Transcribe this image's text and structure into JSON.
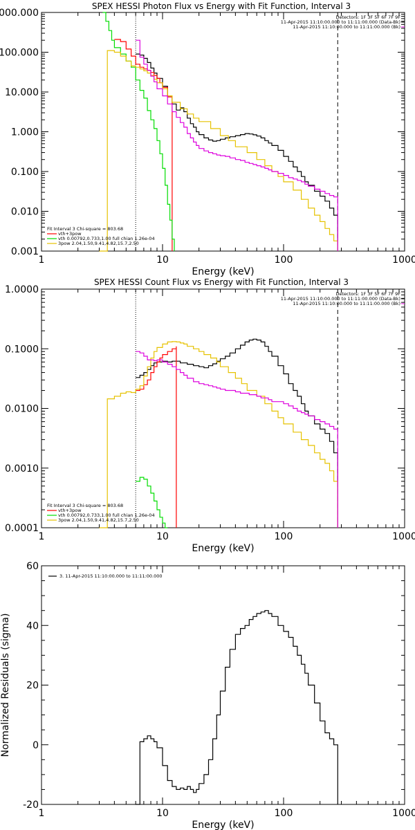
{
  "colors": {
    "black": "#000000",
    "red": "#ff0000",
    "green": "#00dd00",
    "yellow": "#e6c200",
    "magenta": "#dd00dd"
  },
  "chart_data": [
    {
      "type": "line",
      "title": "SPEX HESSI Photon Flux vs Energy with Fit Function, Interval 3",
      "xlabel": "Energy (keV)",
      "ylabel": "",
      "xscale": "log",
      "yscale": "log",
      "xlim": [
        1,
        1000
      ],
      "ylim": [
        0.001,
        1000
      ],
      "xticks": [
        1,
        10,
        100,
        1000
      ],
      "xticklabels": [
        "1",
        "10",
        "100",
        "1000"
      ],
      "yticks": [
        0.001,
        0.01,
        0.1,
        1,
        10,
        100,
        1000
      ],
      "yticklabels": [
        "0.001",
        "0.010",
        "0.100",
        "1.000",
        "10.000",
        "100.000",
        "1000.000"
      ],
      "vlines": [
        {
          "x": 6,
          "style": "dotted"
        },
        {
          "x": 280,
          "style": "dashed"
        }
      ],
      "header": [
        "Detectors: 1F 3F 5F 6F 7F 9F",
        "11-Apr-2015 11:10:00.000 to 11:11:00.000 (Data-Bk)",
        "11-Apr-2015 11:10:00.000 to 11:11:00.000 (Bk)"
      ],
      "legend_title": "Fit Interval 3   Chi-square = 803.68",
      "legend": [
        "vth+3pow",
        "vth 0.00792,0.733,1.00   full chian 1.26e-04",
        "3pow 2.04,1.50,9.41,4.82,15.7,2.50"
      ],
      "series": [
        {
          "color": "black",
          "x": [
            6,
            6.5,
            7,
            7.5,
            8,
            8.5,
            9,
            10,
            11,
            12,
            13,
            14,
            15,
            16,
            17,
            18,
            19,
            20,
            22,
            24,
            26,
            28,
            30,
            33,
            36,
            40,
            44,
            48,
            52,
            56,
            60,
            65,
            70,
            75,
            80,
            90,
            100,
            110,
            120,
            130,
            140,
            150,
            160,
            180,
            200,
            220,
            240,
            260,
            280
          ],
          "y": [
            90,
            85,
            70,
            55,
            40,
            30,
            22,
            14,
            8,
            5,
            3.5,
            4,
            3.2,
            2.2,
            1.6,
            1.3,
            1,
            0.85,
            0.7,
            0.62,
            0.58,
            0.6,
            0.65,
            0.7,
            0.75,
            0.8,
            0.85,
            0.9,
            0.88,
            0.84,
            0.78,
            0.7,
            0.6,
            0.52,
            0.45,
            0.34,
            0.24,
            0.18,
            0.13,
            0.1,
            0.075,
            0.055,
            0.045,
            0.032,
            0.024,
            0.018,
            0.012,
            0.008,
            0.0045
          ]
        },
        {
          "color": "red",
          "x": [
            4,
            4.5,
            5,
            5.5,
            6,
            6.5,
            7,
            7.5,
            8,
            8.5,
            9,
            9.5,
            10,
            11,
            12
          ],
          "y": [
            210,
            185,
            120,
            80,
            50,
            42,
            38,
            35,
            31,
            26,
            22,
            17,
            13,
            7.5,
            5
          ]
        },
        {
          "color": "green",
          "x": [
            3.2,
            3.4,
            3.6,
            3.8,
            4,
            4.5,
            5,
            5.5,
            6,
            6.5,
            7,
            7.5,
            8,
            8.5,
            9,
            9.5,
            10,
            10.5,
            11,
            11.5,
            12,
            12.5
          ],
          "y": [
            1000,
            600,
            350,
            200,
            130,
            90,
            60,
            42,
            20,
            11,
            7,
            3.4,
            2,
            1.2,
            0.6,
            0.28,
            0.12,
            0.045,
            0.015,
            0.006,
            0.002,
            0.001
          ]
        },
        {
          "color": "yellow",
          "x": [
            3,
            3.5,
            4,
            4.5,
            5,
            5.5,
            6,
            6.5,
            7,
            7.5,
            8,
            8.5,
            9,
            10,
            11,
            12,
            14,
            16,
            18,
            20,
            25,
            30,
            35,
            40,
            50,
            60,
            70,
            80,
            90,
            100,
            120,
            140,
            160,
            180,
            200,
            220,
            240,
            260,
            280
          ],
          "y": [
            0.001,
            110,
            100,
            80,
            60,
            45,
            42,
            38,
            34,
            30,
            26,
            21,
            17,
            12,
            8,
            5.5,
            3.8,
            2.8,
            2.2,
            1.8,
            1.2,
            0.8,
            0.6,
            0.42,
            0.3,
            0.2,
            0.14,
            0.1,
            0.075,
            0.055,
            0.034,
            0.02,
            0.012,
            0.008,
            0.0055,
            0.0037,
            0.0026,
            0.0018,
            0.0012
          ]
        },
        {
          "color": "magenta",
          "x": [
            6,
            6.5,
            7,
            7.5,
            8,
            8.5,
            9,
            10,
            11,
            12,
            13,
            14,
            15,
            16,
            17,
            18,
            19,
            20,
            22,
            24,
            26,
            28,
            30,
            33,
            36,
            40,
            44,
            48,
            52,
            56,
            60,
            65,
            70,
            75,
            80,
            90,
            100,
            110,
            120,
            130,
            140,
            150,
            160,
            180,
            200,
            220,
            240,
            260,
            280
          ],
          "y": [
            200,
            75,
            50,
            35,
            25,
            18,
            12,
            8,
            5,
            3.2,
            2.3,
            1.7,
            1.3,
            0.9,
            0.7,
            0.55,
            0.45,
            0.38,
            0.33,
            0.3,
            0.28,
            0.26,
            0.25,
            0.24,
            0.22,
            0.2,
            0.19,
            0.17,
            0.16,
            0.15,
            0.14,
            0.13,
            0.12,
            0.11,
            0.1,
            0.09,
            0.08,
            0.07,
            0.065,
            0.06,
            0.055,
            0.048,
            0.043,
            0.036,
            0.032,
            0.028,
            0.025,
            0.023,
            0.022
          ]
        }
      ]
    },
    {
      "type": "line",
      "title": "SPEX HESSI Count Flux vs Energy with Fit Function, Interval 3",
      "xlabel": "Energy (keV)",
      "ylabel": "",
      "xscale": "log",
      "yscale": "log",
      "xlim": [
        1,
        1000
      ],
      "ylim": [
        0.0001,
        1
      ],
      "xticks": [
        1,
        10,
        100,
        1000
      ],
      "xticklabels": [
        "1",
        "10",
        "100",
        "1000"
      ],
      "yticks": [
        0.0001,
        0.001,
        0.01,
        0.1,
        1
      ],
      "yticklabels": [
        "0.0001",
        "0.0010",
        "0.0100",
        "0.1000",
        "1.0000"
      ],
      "vlines": [
        {
          "x": 6,
          "style": "dotted"
        },
        {
          "x": 280,
          "style": "dashed"
        }
      ],
      "header": [
        "Detectors: 1F 3F 5F 6F 7F 9F",
        "11-Apr-2015 11:10:00.000 to 11:11:00.000 (Data-Bk)",
        "11-Apr-2015 11:10:00.000 to 11:11:00.000 (Bk)"
      ],
      "legend_title": "Fit Interval 3   Chi-square = 803.68",
      "legend": [
        "vth+3pow",
        "vth 0.00792,0.733,1.00   full chian 1.26e-04",
        "3pow 2.04,1.50,9.41,4.82,15.7,2.50"
      ],
      "series": [
        {
          "color": "black",
          "x": [
            6,
            6.5,
            7,
            7.5,
            8,
            8.5,
            9,
            10,
            11,
            12,
            14,
            16,
            18,
            20,
            22,
            24,
            26,
            28,
            30,
            33,
            36,
            40,
            44,
            48,
            52,
            56,
            60,
            65,
            70,
            75,
            80,
            90,
            100,
            110,
            120,
            130,
            140,
            150,
            160,
            180,
            200,
            220,
            240,
            260,
            280
          ],
          "y": [
            0.033,
            0.036,
            0.04,
            0.045,
            0.052,
            0.058,
            0.06,
            0.062,
            0.06,
            0.062,
            0.058,
            0.055,
            0.052,
            0.05,
            0.048,
            0.052,
            0.056,
            0.062,
            0.068,
            0.075,
            0.085,
            0.1,
            0.115,
            0.13,
            0.14,
            0.145,
            0.14,
            0.13,
            0.11,
            0.09,
            0.075,
            0.052,
            0.038,
            0.026,
            0.02,
            0.016,
            0.012,
            0.009,
            0.0075,
            0.0055,
            0.0045,
            0.0038,
            0.0028,
            0.0018,
            0.0008
          ]
        },
        {
          "color": "red",
          "x": [
            6,
            6.5,
            7,
            7.5,
            8,
            8.5,
            9,
            9.5,
            10,
            11,
            12,
            13
          ],
          "y": [
            0.02,
            0.021,
            0.025,
            0.03,
            0.04,
            0.05,
            0.06,
            0.07,
            0.08,
            0.09,
            0.1,
            0.11
          ]
        },
        {
          "color": "green",
          "x": [
            6,
            6.5,
            7,
            7.5,
            8,
            8.5,
            9,
            9.5,
            10,
            10.5,
            11
          ],
          "y": [
            0.0006,
            0.0007,
            0.00065,
            0.0005,
            0.00038,
            0.00028,
            0.0002,
            0.00015,
            0.00012,
            0.0001,
            0.0001
          ]
        },
        {
          "color": "yellow",
          "x": [
            3,
            3.5,
            4,
            4.5,
            5,
            5.5,
            6,
            6.5,
            7,
            7.5,
            8,
            8.5,
            9,
            10,
            11,
            12,
            13,
            14,
            15,
            16,
            18,
            20,
            22,
            25,
            28,
            30,
            35,
            40,
            45,
            50,
            60,
            70,
            80,
            90,
            100,
            120,
            140,
            160,
            180,
            200,
            220,
            240,
            260,
            280
          ],
          "y": [
            0.0001,
            0.0145,
            0.016,
            0.018,
            0.019,
            0.0185,
            0.021,
            0.024,
            0.035,
            0.05,
            0.07,
            0.09,
            0.105,
            0.12,
            0.13,
            0.132,
            0.13,
            0.125,
            0.12,
            0.11,
            0.1,
            0.09,
            0.08,
            0.07,
            0.06,
            0.05,
            0.04,
            0.032,
            0.026,
            0.02,
            0.016,
            0.012,
            0.009,
            0.007,
            0.0055,
            0.004,
            0.003,
            0.0024,
            0.0018,
            0.0014,
            0.0012,
            0.0009,
            0.0006,
            0.0004
          ]
        },
        {
          "color": "magenta",
          "x": [
            6,
            6.5,
            7,
            7.5,
            8,
            8.5,
            9,
            10,
            11,
            12,
            13,
            14,
            15,
            16,
            18,
            20,
            22,
            24,
            26,
            28,
            30,
            33,
            36,
            40,
            44,
            48,
            52,
            56,
            60,
            65,
            70,
            75,
            80,
            90,
            100,
            110,
            120,
            130,
            140,
            150,
            160,
            180,
            200,
            220,
            240,
            260,
            280
          ],
          "y": [
            0.09,
            0.085,
            0.075,
            0.065,
            0.065,
            0.063,
            0.065,
            0.06,
            0.055,
            0.05,
            0.045,
            0.04,
            0.036,
            0.032,
            0.028,
            0.026,
            0.025,
            0.024,
            0.023,
            0.022,
            0.021,
            0.02,
            0.02,
            0.019,
            0.018,
            0.018,
            0.017,
            0.017,
            0.016,
            0.015,
            0.015,
            0.014,
            0.013,
            0.013,
            0.012,
            0.011,
            0.01,
            0.009,
            0.0085,
            0.008,
            0.0075,
            0.0065,
            0.006,
            0.0055,
            0.005,
            0.0045,
            0.0035
          ]
        }
      ]
    },
    {
      "type": "line",
      "title": "",
      "xlabel": "Energy (keV)",
      "ylabel": "Normalized Residuals (sigma)",
      "xscale": "log",
      "yscale": "linear",
      "xlim": [
        1,
        1000
      ],
      "ylim": [
        -20,
        60
      ],
      "xticks": [
        1,
        10,
        100,
        1000
      ],
      "xticklabels": [
        "1",
        "10",
        "100",
        "1000"
      ],
      "yticks": [
        -20,
        0,
        20,
        40,
        60
      ],
      "yticklabels": [
        "-20",
        "0",
        "20",
        "40",
        "60"
      ],
      "legend": [
        "3. 11-Apr-2015 11:10:00.000 to 11:11:00.000"
      ],
      "series": [
        {
          "color": "black",
          "x": [
            6,
            6.5,
            7,
            7.5,
            8,
            8.5,
            9,
            10,
            11,
            12,
            13,
            14,
            15,
            16,
            17,
            18,
            19,
            20,
            22,
            24,
            26,
            28,
            30,
            33,
            36,
            40,
            44,
            48,
            52,
            56,
            60,
            65,
            70,
            75,
            80,
            90,
            100,
            110,
            120,
            130,
            140,
            150,
            160,
            180,
            200,
            220,
            240,
            260,
            280
          ],
          "y": [
            -20,
            1,
            2,
            3,
            2,
            1,
            -1,
            -7,
            -12,
            -14,
            -15,
            -14.5,
            -15,
            -14,
            -15,
            -16,
            -15,
            -13,
            -10,
            -5,
            2,
            10,
            18,
            26,
            32,
            37,
            39,
            40,
            42,
            43,
            44,
            44.5,
            45,
            44,
            43,
            40,
            38,
            36,
            33,
            30,
            27,
            24,
            20,
            14,
            8,
            4,
            2,
            0,
            -20
          ]
        }
      ]
    }
  ]
}
